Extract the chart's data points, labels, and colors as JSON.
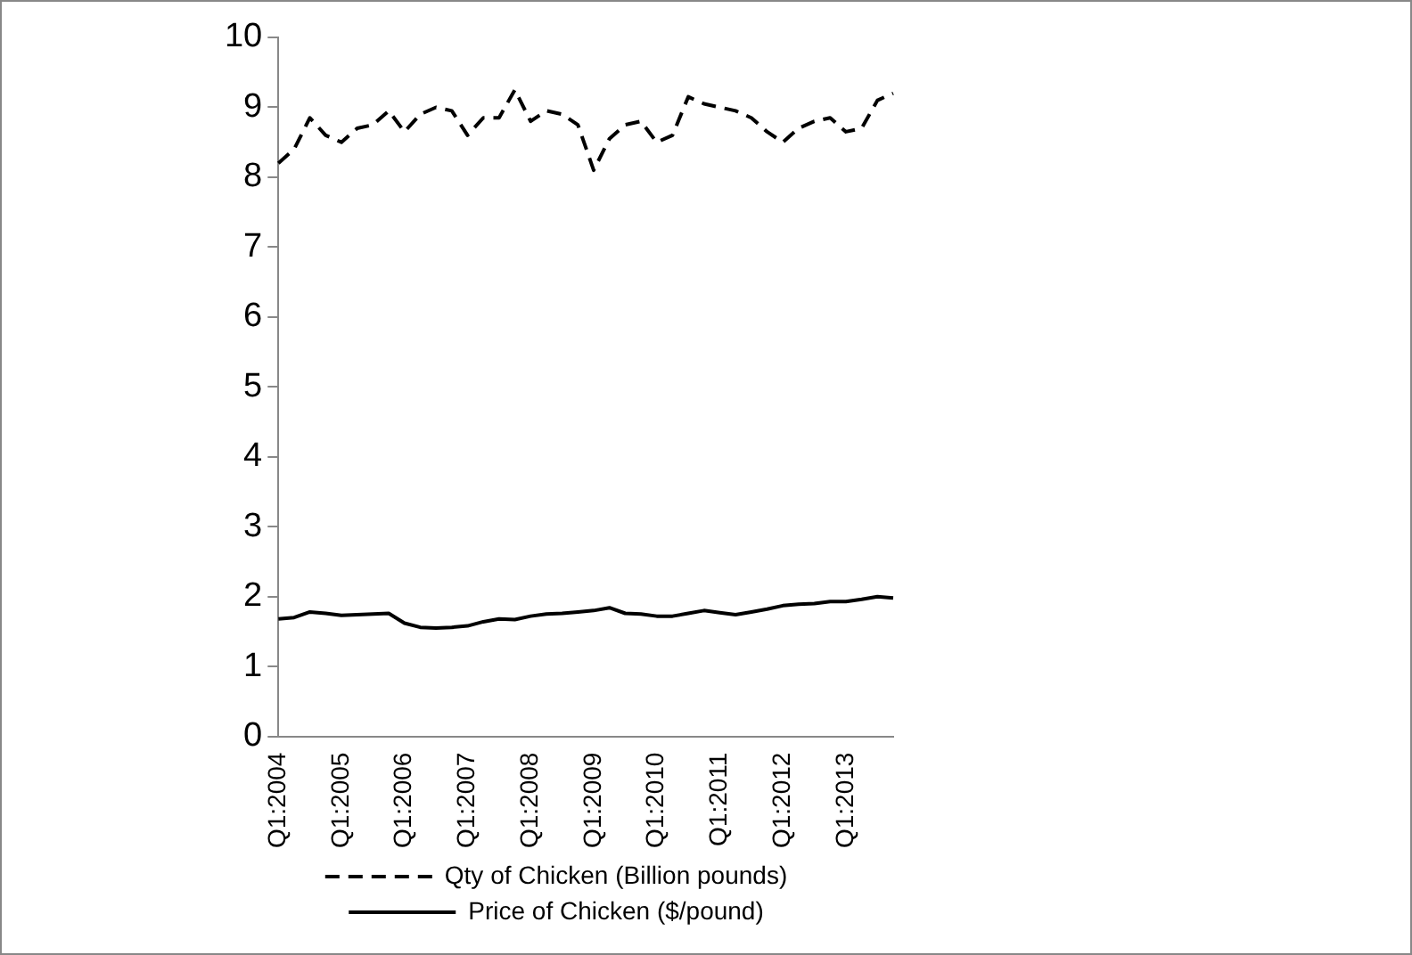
{
  "chart_data": {
    "type": "line",
    "categories": [
      "Q1:2004",
      null,
      null,
      null,
      "Q1:2005",
      null,
      null,
      null,
      "Q1:2006",
      null,
      null,
      null,
      "Q1:2007",
      null,
      null,
      null,
      "Q1:2008",
      null,
      null,
      null,
      "Q1:2009",
      null,
      null,
      null,
      "Q1:2010",
      null,
      null,
      null,
      "Q1:2011",
      null,
      null,
      null,
      "Q1:2012",
      null,
      null,
      null,
      "Q1:2013",
      null,
      null,
      null
    ],
    "series": [
      {
        "name": "Qty of Chicken (Billion pounds)",
        "color": "#000000",
        "line_style": "dashed",
        "values": [
          8.2,
          8.4,
          8.85,
          8.6,
          8.5,
          8.7,
          8.75,
          8.95,
          8.65,
          8.9,
          9.0,
          8.95,
          8.6,
          8.85,
          8.85,
          9.25,
          8.8,
          8.95,
          8.9,
          8.75,
          8.1,
          8.55,
          8.75,
          8.8,
          8.5,
          8.6,
          9.15,
          9.05,
          9.0,
          8.95,
          8.85,
          8.65,
          8.5,
          8.7,
          8.8,
          8.85,
          8.65,
          8.7,
          9.1,
          9.2
        ]
      },
      {
        "name": "Price of Chicken ($/pound)",
        "color": "#000000",
        "line_style": "solid",
        "values": [
          1.68,
          1.7,
          1.78,
          1.76,
          1.73,
          1.74,
          1.75,
          1.76,
          1.62,
          1.56,
          1.55,
          1.56,
          1.58,
          1.64,
          1.68,
          1.67,
          1.72,
          1.75,
          1.76,
          1.78,
          1.8,
          1.84,
          1.76,
          1.75,
          1.72,
          1.72,
          1.76,
          1.8,
          1.77,
          1.74,
          1.78,
          1.82,
          1.87,
          1.89,
          1.9,
          1.93,
          1.93,
          1.96,
          2.0,
          1.98
        ]
      }
    ],
    "ylim": [
      0,
      10
    ],
    "yticks": [
      0,
      1,
      2,
      3,
      4,
      5,
      6,
      7,
      8,
      9,
      10
    ],
    "grid": false,
    "legend": "bottom",
    "marker": "none"
  }
}
